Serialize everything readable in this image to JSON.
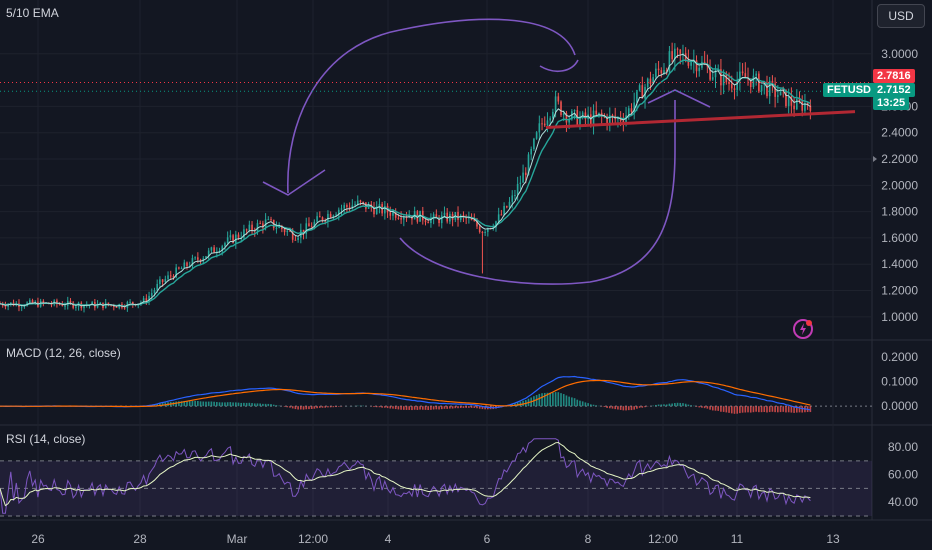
{
  "main_title": "5/10 EMA",
  "currency": "USD",
  "symbol": "FETUSD",
  "price_high": "2.7816",
  "price_last": "2.7152",
  "countdown": "13:25",
  "colors": {
    "up": "#26a69a",
    "down": "#ef5350",
    "bg": "#131722",
    "drawing": "#7e57c2",
    "trendline": "#b22833",
    "grid": "#1e222d"
  },
  "icons": [
    "flash-icon"
  ],
  "chart_data": [
    {
      "type": "line",
      "title": "5/10 EMA",
      "symbol": "FETUSD",
      "x_tick_labels": [
        "26",
        "28",
        "Mar",
        "12:00",
        "4",
        "6",
        "8",
        "12:00",
        "11",
        "13"
      ],
      "y_tick_labels": [
        "1.0000",
        "1.2000",
        "1.4000",
        "1.6000",
        "1.8000",
        "2.0000",
        "2.2000",
        "2.4000",
        "2.6000",
        "3.0000"
      ],
      "ylim": [
        0.9,
        3.12
      ],
      "grid": true,
      "approx_close": [
        [
          25.0,
          1.1
        ],
        [
          26.0,
          1.1
        ],
        [
          27.0,
          1.09
        ],
        [
          27.5,
          1.09
        ],
        [
          28.0,
          1.12
        ],
        [
          28.3,
          1.25
        ],
        [
          28.6,
          1.33
        ],
        [
          28.9,
          1.4
        ],
        [
          29.3,
          1.48
        ],
        [
          29.7,
          1.57
        ],
        [
          30.1,
          1.65
        ],
        [
          30.5,
          1.72
        ],
        [
          30.8,
          1.68
        ],
        [
          31.1,
          1.62
        ],
        [
          31.4,
          1.68
        ],
        [
          31.7,
          1.76
        ],
        [
          32.0,
          1.82
        ],
        [
          32.4,
          1.86
        ],
        [
          32.8,
          1.82
        ],
        [
          33.2,
          1.79
        ],
        [
          33.6,
          1.77
        ],
        [
          34.0,
          1.74
        ],
        [
          34.4,
          1.76
        ],
        [
          34.7,
          1.74
        ],
        [
          35.0,
          1.66
        ],
        [
          35.3,
          1.73
        ],
        [
          35.6,
          1.88
        ],
        [
          35.9,
          2.12
        ],
        [
          36.2,
          2.45
        ],
        [
          36.5,
          2.63
        ],
        [
          36.8,
          2.52
        ],
        [
          37.1,
          2.5
        ],
        [
          37.4,
          2.52
        ],
        [
          37.8,
          2.5
        ],
        [
          38.0,
          2.55
        ],
        [
          38.3,
          2.72
        ],
        [
          38.6,
          2.85
        ],
        [
          38.9,
          2.96
        ],
        [
          39.2,
          2.98
        ],
        [
          39.5,
          2.93
        ],
        [
          39.8,
          2.85
        ],
        [
          40.1,
          2.78
        ],
        [
          40.5,
          2.82
        ],
        [
          40.8,
          2.76
        ],
        [
          41.2,
          2.68
        ],
        [
          41.5,
          2.6
        ],
        [
          41.8,
          2.63
        ]
      ],
      "series": [
        {
          "values_ref": "approx_close",
          "kind": "candles"
        },
        {
          "kind": "ema",
          "period": 5
        },
        {
          "kind": "ema",
          "period": 10
        }
      ]
    },
    {
      "type": "line",
      "title": "MACD (12, 26, close)",
      "y_tick_labels": [
        "0.0000",
        "0.1000",
        "0.2000"
      ],
      "ylim": [
        -0.04,
        0.22
      ],
      "series": [
        {
          "kind": "macd"
        },
        {
          "kind": "signal"
        },
        {
          "kind": "histogram"
        }
      ]
    },
    {
      "type": "line",
      "title": "RSI (14, close)",
      "y_tick_labels": [
        "40.00",
        "60.00",
        "80.00"
      ],
      "ylim": [
        30,
        88
      ],
      "bands": [
        30,
        50,
        70
      ],
      "series": [
        {
          "kind": "rsi"
        },
        {
          "kind": "rsi-ma"
        }
      ]
    }
  ]
}
